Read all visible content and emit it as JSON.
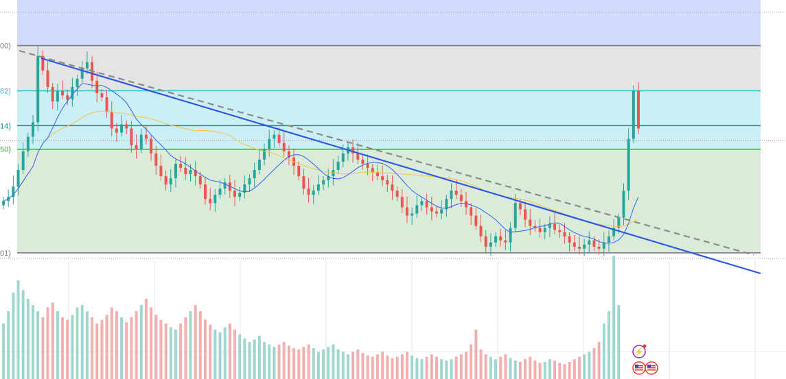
{
  "chart_data": {
    "type": "candlestick",
    "title": "",
    "fib_levels": [
      {
        "label": "00)",
        "value": 1.0,
        "color": "#787b86",
        "zone_above": "#d1dcfd"
      },
      {
        "label": "82)",
        "value": 0.782,
        "color": "#26c6da",
        "zone_above": "#e4e4e4"
      },
      {
        "label": "14)",
        "value": 0.614,
        "color": "#089981",
        "zone_above": "#cceff5"
      },
      {
        "label": "50)",
        "value": 0.5,
        "color": "#43a047",
        "zone_above": "#cceff5"
      },
      {
        "label": "01)",
        "value": 0.0,
        "color": "#787b86",
        "zone_above": "#daebda"
      }
    ],
    "fib_top_zone_value": 1.2,
    "price_range": [
      -0.02,
      1.22
    ],
    "candle_count": 160,
    "colors": {
      "up": "#26a69a",
      "down": "#ef5350",
      "volume_up": "#9fd6cf",
      "volume_down": "#f5aeae",
      "ma_fast": "#2962ff",
      "ma_slow": "#f5c04a",
      "trendline_solid": "#2f57e8",
      "trendline_dashed": "#8a8a8a"
    },
    "price_path": [
      0.25,
      0.27,
      0.32,
      0.4,
      0.49,
      0.56,
      0.63,
      0.95,
      0.88,
      0.8,
      0.73,
      0.78,
      0.76,
      0.74,
      0.8,
      0.84,
      0.89,
      0.92,
      0.83,
      0.77,
      0.75,
      0.68,
      0.6,
      0.58,
      0.62,
      0.6,
      0.52,
      0.5,
      0.57,
      0.55,
      0.48,
      0.42,
      0.37,
      0.33,
      0.36,
      0.43,
      0.41,
      0.38,
      0.4,
      0.37,
      0.33,
      0.26,
      0.24,
      0.28,
      0.31,
      0.34,
      0.3,
      0.27,
      0.29,
      0.33,
      0.36,
      0.4,
      0.45,
      0.5,
      0.55,
      0.57,
      0.53,
      0.49,
      0.46,
      0.42,
      0.37,
      0.31,
      0.28,
      0.3,
      0.33,
      0.35,
      0.37,
      0.4,
      0.44,
      0.48,
      0.51,
      0.48,
      0.45,
      0.43,
      0.41,
      0.39,
      0.37,
      0.35,
      0.33,
      0.3,
      0.27,
      0.22,
      0.18,
      0.19,
      0.23,
      0.25,
      0.22,
      0.2,
      0.19,
      0.21,
      0.26,
      0.3,
      0.28,
      0.25,
      0.22,
      0.18,
      0.13,
      0.08,
      0.03,
      0.05,
      0.08,
      0.06,
      0.05,
      0.12,
      0.24,
      0.21,
      0.16,
      0.13,
      0.12,
      0.1,
      0.12,
      0.14,
      0.11,
      0.1,
      0.08,
      0.05,
      0.03,
      0.02,
      0.04,
      0.06,
      0.03,
      0.02,
      0.05,
      0.08,
      0.12,
      0.17,
      0.3,
      0.55,
      0.78,
      0.6
    ],
    "volume_path": [
      0.45,
      0.55,
      0.7,
      0.8,
      0.72,
      0.65,
      0.6,
      0.55,
      0.5,
      0.58,
      0.62,
      0.55,
      0.5,
      0.48,
      0.52,
      0.58,
      0.6,
      0.55,
      0.5,
      0.45,
      0.48,
      0.52,
      0.58,
      0.55,
      0.5,
      0.46,
      0.5,
      0.55,
      0.6,
      0.65,
      0.58,
      0.52,
      0.48,
      0.45,
      0.42,
      0.4,
      0.45,
      0.5,
      0.55,
      0.6,
      0.55,
      0.48,
      0.44,
      0.4,
      0.38,
      0.42,
      0.45,
      0.4,
      0.36,
      0.33,
      0.3,
      0.32,
      0.35,
      0.3,
      0.28,
      0.26,
      0.28,
      0.3,
      0.27,
      0.25,
      0.24,
      0.26,
      0.28,
      0.25,
      0.22,
      0.24,
      0.26,
      0.28,
      0.24,
      0.22,
      0.2,
      0.22,
      0.24,
      0.21,
      0.19,
      0.18,
      0.2,
      0.22,
      0.19,
      0.17,
      0.18,
      0.2,
      0.22,
      0.19,
      0.17,
      0.16,
      0.18,
      0.2,
      0.18,
      0.16,
      0.15,
      0.16,
      0.18,
      0.2,
      0.22,
      0.28,
      0.4,
      0.24,
      0.2,
      0.18,
      0.16,
      0.18,
      0.2,
      0.17,
      0.15,
      0.14,
      0.16,
      0.18,
      0.15,
      0.13,
      0.14,
      0.16,
      0.15,
      0.13,
      0.12,
      0.14,
      0.16,
      0.18,
      0.2,
      0.22,
      0.25,
      0.3,
      0.45,
      0.55,
      1.0,
      0.6
    ]
  },
  "badges": [
    {
      "name": "lightning-icon",
      "glyph": "⚡",
      "color": "#9c27b0"
    },
    {
      "name": "us-flag-icon",
      "glyph": "▭",
      "color": "#e53935"
    },
    {
      "name": "us-flag-icon-2",
      "glyph": "▭",
      "color": "#e53935"
    }
  ]
}
